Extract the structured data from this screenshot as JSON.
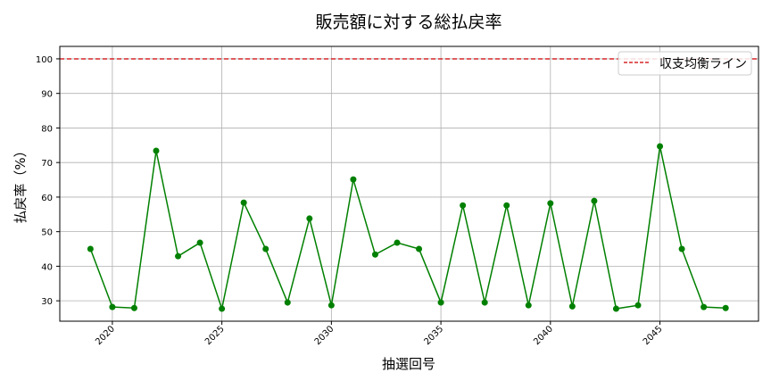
{
  "chart_data": {
    "type": "line",
    "title": "販売額に対する総払戻率",
    "xlabel": "抽選回号",
    "ylabel": "払戻率（%）",
    "xlim": [
      2017.6,
      2049.5
    ],
    "ylim": [
      24.1,
      103.6
    ],
    "xticks": [
      2020,
      2025,
      2030,
      2035,
      2040,
      2045
    ],
    "yticks": [
      30,
      40,
      50,
      60,
      70,
      80,
      90,
      100
    ],
    "grid": true,
    "legend_position": "top-right",
    "x": [
      2019,
      2020,
      2021,
      2022,
      2023,
      2024,
      2025,
      2026,
      2027,
      2028,
      2029,
      2030,
      2031,
      2032,
      2033,
      2034,
      2035,
      2036,
      2037,
      2038,
      2039,
      2040,
      2041,
      2042,
      2043,
      2044,
      2045,
      2046,
      2047,
      2048
    ],
    "series": [
      {
        "values": [
          45.0,
          28.2,
          27.9,
          73.4,
          42.9,
          46.8,
          27.7,
          58.4,
          45.0,
          29.5,
          53.8,
          28.7,
          65.1,
          43.4,
          46.8,
          45.0,
          29.5,
          57.6,
          29.5,
          57.6,
          28.7,
          58.2,
          28.4,
          58.9,
          27.7,
          28.7,
          74.7,
          45.0,
          28.2,
          27.9
        ],
        "color": "#008000"
      }
    ],
    "reference_line": {
      "name": "収支均衡ライン",
      "value": 100,
      "color": "#d62728",
      "style": "dashed"
    }
  }
}
